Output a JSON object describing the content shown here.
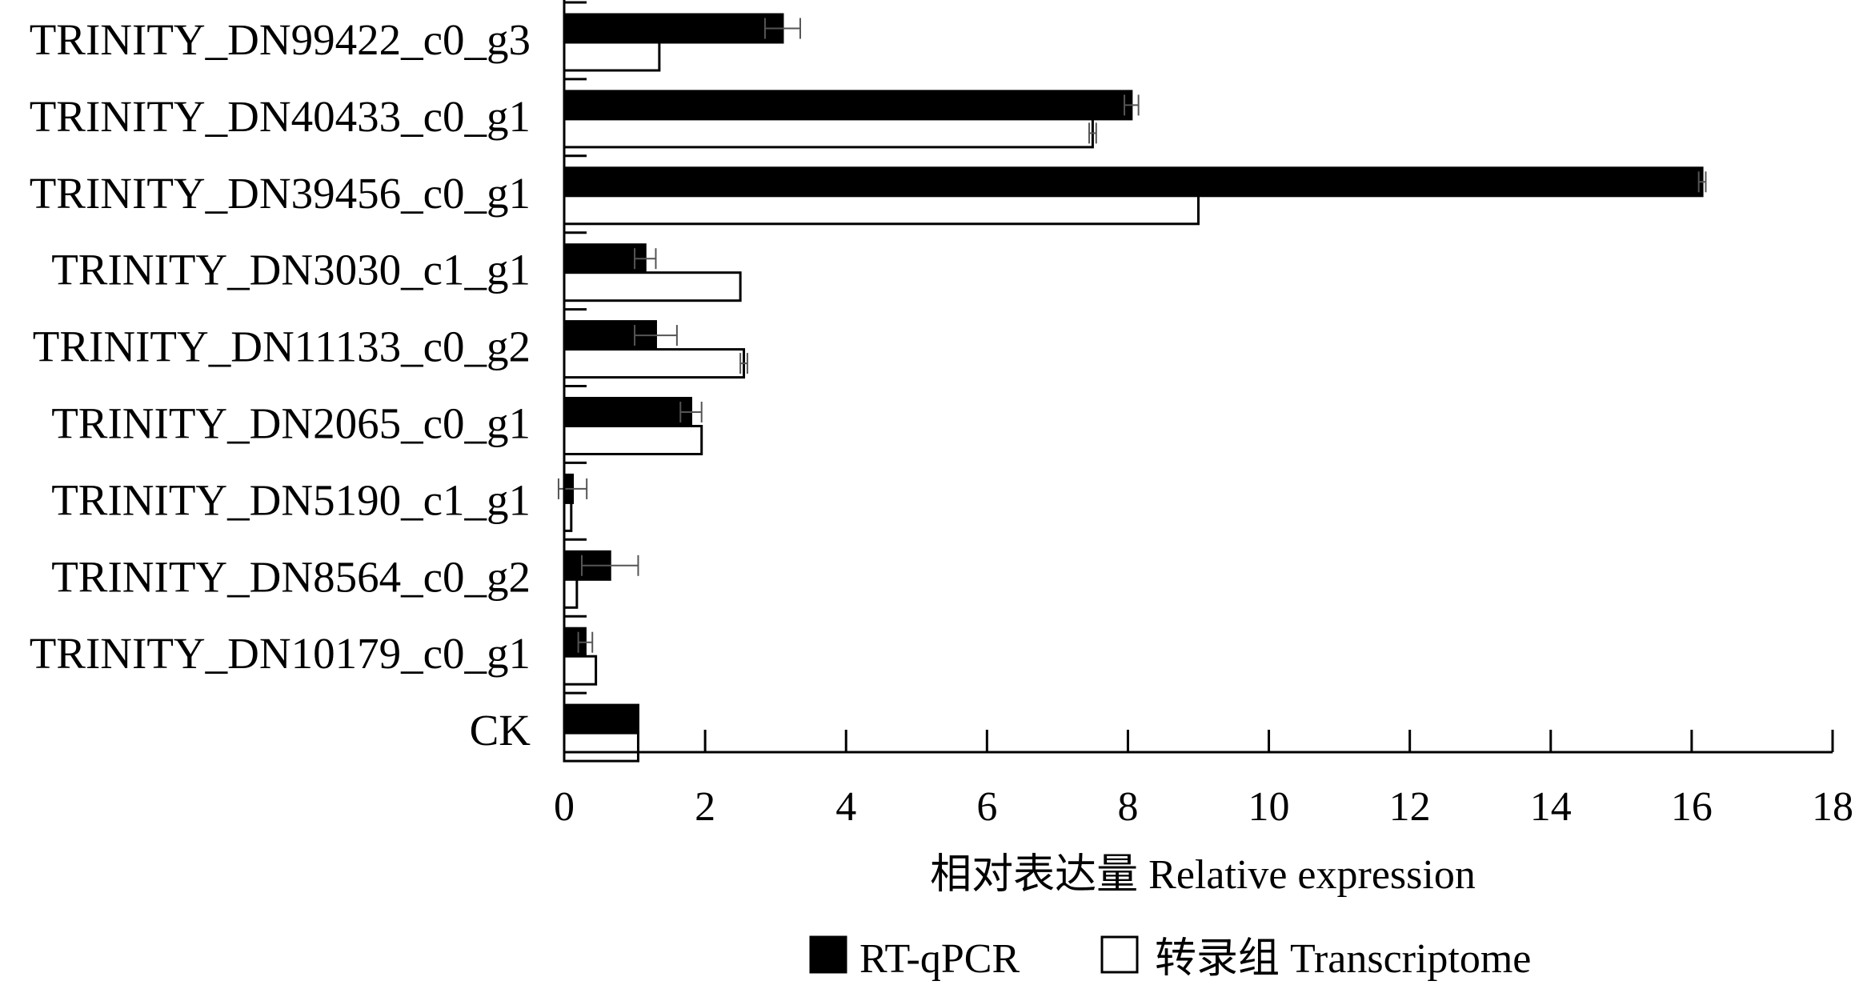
{
  "chart_data": {
    "type": "bar",
    "orientation": "horizontal",
    "categories": [
      "TRINITY_DN99422_c0_g3",
      "TRINITY_DN40433_c0_g1",
      "TRINITY_DN39456_c0_g1",
      "TRINITY_DN3030_c1_g1",
      "TRINITY_DN11133_c0_g2",
      "TRINITY_DN2065_c0_g1",
      "TRINITY_DN5190_c1_g1",
      "TRINITY_DN8564_c0_g2",
      "TRINITY_DN10179_c0_g1",
      "CK"
    ],
    "series": [
      {
        "name": "RT-qPCR",
        "fill": "#000000",
        "values": [
          3.1,
          8.05,
          16.15,
          1.15,
          1.3,
          1.8,
          0.12,
          0.65,
          0.3,
          1.05
        ],
        "errors": [
          0.25,
          0.1,
          0.05,
          0.15,
          0.3,
          0.15,
          0.2,
          0.4,
          0.1,
          0.0
        ]
      },
      {
        "name": "转录组 Transcriptome",
        "fill": "#ffffff",
        "values": [
          1.35,
          7.5,
          9.0,
          2.5,
          2.55,
          1.95,
          0.1,
          0.18,
          0.45,
          1.05
        ],
        "errors": [
          0.0,
          0.05,
          0.0,
          0.0,
          0.05,
          0.0,
          0.0,
          0.0,
          0.0,
          0.0
        ]
      }
    ],
    "xlabel": "相对表达量 Relative expression",
    "ylabel": "",
    "xlim": [
      0,
      18
    ],
    "xticks": [
      "0",
      "2",
      "4",
      "6",
      "8",
      "10",
      "12",
      "14",
      "16",
      "18"
    ],
    "grid": false,
    "legend": "bottom-center"
  }
}
